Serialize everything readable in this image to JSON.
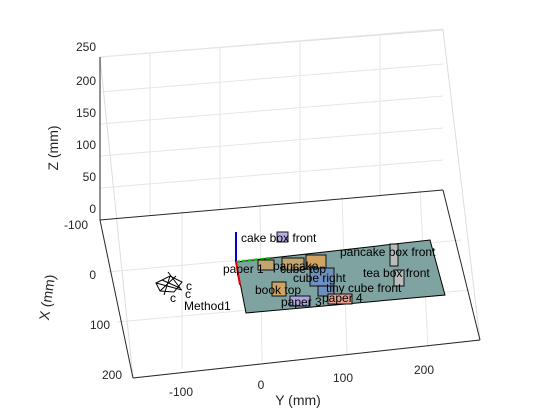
{
  "chart_data": {
    "type": "scatter",
    "title": "",
    "xlabel": "Y (mm)",
    "ylabel": "X (mm)",
    "zlabel": "Z (mm)",
    "y_ticks": [
      "-100",
      "0",
      "100",
      "200"
    ],
    "x_ticks": [
      "-100",
      "0",
      "100",
      "200"
    ],
    "z_ticks": [
      "0",
      "50",
      "100",
      "150",
      "200",
      "250"
    ],
    "grid": true,
    "colors": {
      "plane": "#7fa3a0",
      "axis_x": "#e00000",
      "axis_y": "#00c000",
      "axis_z": "#0000d0",
      "box_purple": "#b3a6e6",
      "box_orange": "#d9a45c",
      "box_blue": "#6c8fc2",
      "box_pink": "#f0a090",
      "box_tan": "#c9a86a",
      "box_gray": "#bfbfbf"
    },
    "annotations": [
      {
        "label": "cake box front",
        "color": "box_purple"
      },
      {
        "label": "pancake box front",
        "color": "box_gray"
      },
      {
        "label": "paper 1",
        "color": "box_tan"
      },
      {
        "label": "pancake",
        "color": "box_tan"
      },
      {
        "label": "cube top",
        "color": "box_orange"
      },
      {
        "label": "cube right",
        "color": "box_blue"
      },
      {
        "label": "tea box front",
        "color": "box_gray"
      },
      {
        "label": "book top",
        "color": "box_orange"
      },
      {
        "label": "tiny cube front",
        "color": "box_blue"
      },
      {
        "label": "paper 3",
        "color": "box_purple"
      },
      {
        "label": "paper 4",
        "color": "box_pink"
      }
    ],
    "camera_label": "Method1",
    "camera_axis_labels": [
      "c",
      "c",
      "c"
    ]
  }
}
